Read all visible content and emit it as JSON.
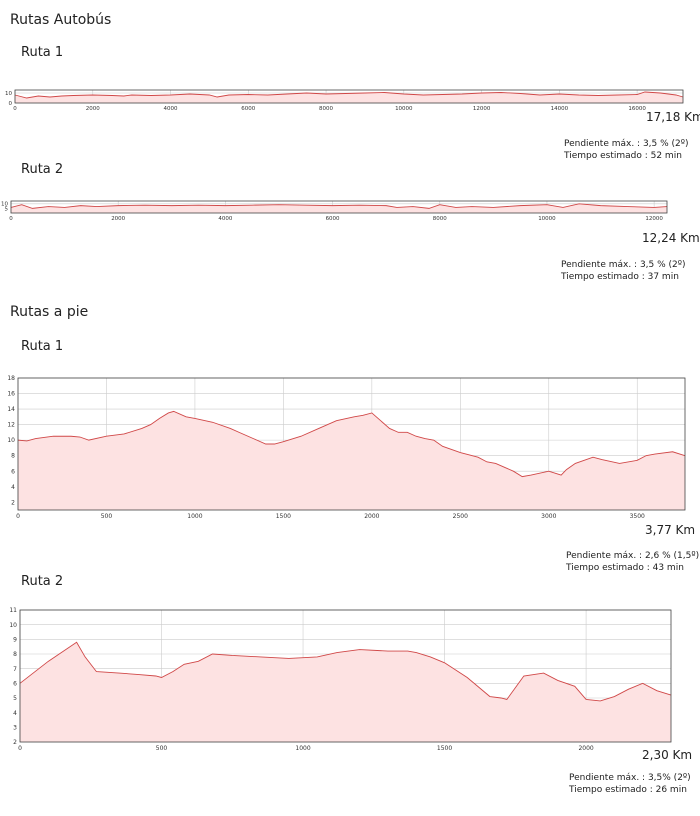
{
  "sections": {
    "bus": {
      "title": "Rutas Autobús"
    },
    "walk": {
      "title": "Rutas a pie"
    }
  },
  "routes": {
    "bus1": {
      "label": "Ruta 1",
      "distance": "17,18 Km",
      "slope": "Pendiente máx. : 3,5 % (2º)",
      "time": "Tiempo estimado : 52 min"
    },
    "bus2": {
      "label": "Ruta 2",
      "distance": "12,24 Km",
      "slope": "Pendiente máx. : 3,5 % (2º)",
      "time": "Tiempo estimado : 37 min"
    },
    "walk1": {
      "label": "Ruta 1",
      "distance": "3,77 Km",
      "slope": "Pendiente máx. : 2,6 % (1,5º)",
      "time": "Tiempo estimado : 43 min"
    },
    "walk2": {
      "label": "Ruta 2",
      "distance": "2,30 Km",
      "slope": "Pendiente máx. : 3,5% (2º)",
      "time": "Tiempo estimado : 26 min"
    }
  },
  "colors": {
    "line": "#d04848",
    "fill": "#fde2e2",
    "grid": "#cccccc",
    "axis": "#444444"
  },
  "chart_data": [
    {
      "id": "bus1",
      "type": "area",
      "xlim": [
        0,
        17180
      ],
      "ylim": [
        0,
        13
      ],
      "xticks": [
        0,
        2000,
        4000,
        6000,
        8000,
        10000,
        12000,
        14000,
        16000
      ],
      "yticks": [
        0,
        10
      ],
      "grid": true,
      "x": [
        0,
        300,
        600,
        900,
        1200,
        1500,
        2000,
        2500,
        2800,
        3000,
        3500,
        4000,
        4500,
        5000,
        5200,
        5500,
        6000,
        6500,
        7000,
        7500,
        8000,
        8500,
        9000,
        9500,
        10000,
        10500,
        11000,
        11500,
        12000,
        12500,
        13000,
        13500,
        14000,
        14500,
        15000,
        15500,
        16000,
        16200,
        16600,
        17000,
        17180
      ],
      "y": [
        8,
        5,
        7,
        6,
        7,
        7.5,
        8,
        7.5,
        7,
        8,
        7.5,
        8,
        9,
        8,
        6,
        8,
        8.5,
        8,
        9,
        10,
        9,
        9.5,
        10,
        10.5,
        9,
        8,
        8.5,
        9,
        10,
        10.5,
        9.5,
        8,
        9,
        8,
        7.5,
        8,
        8.5,
        11,
        10,
        8,
        6
      ]
    },
    {
      "id": "bus2",
      "type": "area",
      "xlim": [
        0,
        12240
      ],
      "ylim": [
        0,
        13
      ],
      "xticks": [
        0,
        2000,
        4000,
        6000,
        8000,
        10000,
        12000
      ],
      "yticks": [
        5,
        10
      ],
      "grid": true,
      "x": [
        0,
        200,
        400,
        700,
        1000,
        1300,
        1600,
        2000,
        2500,
        3000,
        3500,
        4000,
        4500,
        5000,
        5500,
        6000,
        6500,
        7000,
        7200,
        7500,
        7800,
        8000,
        8300,
        8600,
        9000,
        9500,
        10000,
        10300,
        10600,
        11000,
        11500,
        12000,
        12240
      ],
      "y": [
        6,
        9,
        5,
        7,
        6,
        8,
        7,
        8,
        8.5,
        8,
        8.5,
        8,
        8.5,
        9,
        8.5,
        8,
        8.5,
        8,
        6,
        7,
        5,
        9,
        6,
        7,
        6,
        8,
        9,
        6,
        10,
        8,
        7,
        6,
        7
      ]
    },
    {
      "id": "walk1",
      "type": "area",
      "xlim": [
        0,
        3770
      ],
      "ylim": [
        1,
        18
      ],
      "xticks": [
        0,
        500,
        1000,
        1500,
        2000,
        2500,
        3000,
        3500
      ],
      "yticks": [
        2,
        4,
        6,
        8,
        10,
        12,
        14,
        16,
        18
      ],
      "grid": true,
      "x": [
        0,
        50,
        100,
        200,
        300,
        350,
        400,
        500,
        600,
        700,
        750,
        800,
        850,
        880,
        950,
        1000,
        1100,
        1200,
        1250,
        1300,
        1350,
        1400,
        1450,
        1500,
        1600,
        1700,
        1800,
        1900,
        1950,
        2000,
        2050,
        2100,
        2150,
        2200,
        2250,
        2300,
        2350,
        2400,
        2500,
        2600,
        2650,
        2700,
        2750,
        2800,
        2850,
        2900,
        3000,
        3070,
        3100,
        3150,
        3250,
        3300,
        3400,
        3500,
        3550,
        3600,
        3700,
        3770
      ],
      "y": [
        10,
        9.9,
        10.2,
        10.5,
        10.5,
        10.4,
        10,
        10.5,
        10.8,
        11.5,
        12,
        12.8,
        13.5,
        13.7,
        13,
        12.8,
        12.3,
        11.5,
        11,
        10.5,
        10,
        9.5,
        9.5,
        9.8,
        10.5,
        11.5,
        12.5,
        13,
        13.2,
        13.5,
        12.5,
        11.5,
        11,
        11,
        10.5,
        10.2,
        10,
        9.2,
        8.4,
        7.8,
        7.2,
        7,
        6.5,
        6,
        5.3,
        5.5,
        6,
        5.5,
        6.2,
        7,
        7.8,
        7.5,
        7,
        7.4,
        8,
        8.2,
        8.5,
        8
      ]
    },
    {
      "id": "walk2",
      "type": "area",
      "xlim": [
        0,
        2300
      ],
      "ylim": [
        2,
        11
      ],
      "xticks": [
        0,
        500,
        1000,
        1500,
        2000
      ],
      "yticks": [
        2,
        3,
        4,
        5,
        6,
        7,
        8,
        9,
        10,
        11
      ],
      "grid": true,
      "x": [
        0,
        100,
        200,
        230,
        270,
        350,
        420,
        480,
        500,
        540,
        580,
        630,
        680,
        750,
        850,
        950,
        1050,
        1120,
        1200,
        1300,
        1370,
        1400,
        1450,
        1500,
        1580,
        1660,
        1700,
        1720,
        1780,
        1850,
        1900,
        1960,
        2000,
        2050,
        2100,
        2150,
        2200,
        2250,
        2300
      ],
      "y": [
        6,
        7.5,
        8.8,
        7.8,
        6.8,
        6.7,
        6.6,
        6.5,
        6.4,
        6.8,
        7.3,
        7.5,
        8,
        7.9,
        7.8,
        7.7,
        7.8,
        8.1,
        8.3,
        8.2,
        8.2,
        8.1,
        7.8,
        7.4,
        6.4,
        5.1,
        5,
        4.9,
        6.5,
        6.7,
        6.2,
        5.8,
        4.9,
        4.8,
        5.1,
        5.6,
        6,
        5.5,
        5.2
      ]
    }
  ]
}
